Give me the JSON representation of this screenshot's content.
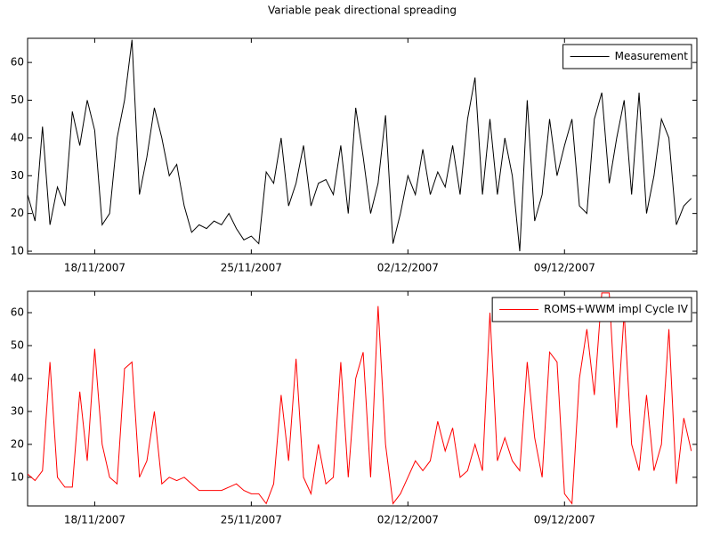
{
  "chart_data": [
    {
      "type": "line",
      "title": "Variable peak directional spreading",
      "x": [
        "2007-11-15T00",
        "2007-11-15T08",
        "2007-11-15T16",
        "2007-11-16T00",
        "2007-11-16T08",
        "2007-11-16T16",
        "2007-11-17T00",
        "2007-11-17T08",
        "2007-11-17T16",
        "2007-11-18T00",
        "2007-11-18T08",
        "2007-11-18T16",
        "2007-11-19T00",
        "2007-11-19T08",
        "2007-11-19T16",
        "2007-11-20T00",
        "2007-11-20T08",
        "2007-11-20T16",
        "2007-11-21T00",
        "2007-11-21T08",
        "2007-11-21T16",
        "2007-11-22T00",
        "2007-11-22T08",
        "2007-11-22T16",
        "2007-11-23T00",
        "2007-11-23T08",
        "2007-11-23T16",
        "2007-11-24T00",
        "2007-11-24T08",
        "2007-11-24T16",
        "2007-11-25T00",
        "2007-11-25T08",
        "2007-11-25T16",
        "2007-11-26T00",
        "2007-11-26T08",
        "2007-11-26T16",
        "2007-11-27T00",
        "2007-11-27T08",
        "2007-11-27T16",
        "2007-11-28T00",
        "2007-11-28T08",
        "2007-11-28T16",
        "2007-11-29T00",
        "2007-11-29T08",
        "2007-11-29T16",
        "2007-11-30T00",
        "2007-11-30T08",
        "2007-11-30T16",
        "2007-12-01T00",
        "2007-12-01T08",
        "2007-12-01T16",
        "2007-12-02T00",
        "2007-12-02T08",
        "2007-12-02T16",
        "2007-12-03T00",
        "2007-12-03T08",
        "2007-12-03T16",
        "2007-12-04T00",
        "2007-12-04T08",
        "2007-12-04T16",
        "2007-12-05T00",
        "2007-12-05T08",
        "2007-12-05T16",
        "2007-12-06T00",
        "2007-12-06T08",
        "2007-12-06T16",
        "2007-12-07T00",
        "2007-12-07T08",
        "2007-12-07T16",
        "2007-12-08T00",
        "2007-12-08T08",
        "2007-12-08T16",
        "2007-12-09T00",
        "2007-12-09T08",
        "2007-12-09T16",
        "2007-12-10T00",
        "2007-12-10T08",
        "2007-12-10T16",
        "2007-12-11T00",
        "2007-12-11T08",
        "2007-12-11T16",
        "2007-12-12T00",
        "2007-12-12T08",
        "2007-12-12T16",
        "2007-12-13T00",
        "2007-12-13T08",
        "2007-12-13T16",
        "2007-12-14T00",
        "2007-12-14T08",
        "2007-12-14T16"
      ],
      "series": [
        {
          "name": "Measurement",
          "color": "#000000",
          "values": [
            25,
            18,
            43,
            17,
            27,
            22,
            47,
            38,
            50,
            42,
            17,
            20,
            40,
            50,
            66,
            25,
            35,
            48,
            40,
            30,
            33,
            22,
            15,
            17,
            16,
            18,
            17,
            20,
            16,
            13,
            14,
            12,
            31,
            28,
            40,
            22,
            28,
            38,
            22,
            28,
            29,
            25,
            38,
            20,
            48,
            35,
            20,
            28,
            46,
            12,
            20,
            30,
            25,
            37,
            25,
            31,
            27,
            38,
            25,
            45,
            56,
            25,
            45,
            25,
            40,
            30,
            10,
            50,
            18,
            25,
            45,
            30,
            38,
            45,
            22,
            20,
            45,
            52,
            28,
            40,
            50,
            25,
            52,
            20,
            30,
            45,
            40,
            17,
            22,
            24
          ]
        }
      ],
      "xlim": [
        "2007-11-15T00",
        "2007-12-14T22"
      ],
      "xticks": [
        {
          "value": "2007-11-18T00",
          "label": "18/11/2007"
        },
        {
          "value": "2007-11-25T00",
          "label": "25/11/2007"
        },
        {
          "value": "2007-12-02T00",
          "label": "02/12/2007"
        },
        {
          "value": "2007-12-09T00",
          "label": "09/12/2007"
        }
      ],
      "ylim": [
        9.3,
        66.4
      ],
      "yticks": [
        10,
        20,
        30,
        40,
        50,
        60
      ],
      "legend": "upper right"
    },
    {
      "type": "line",
      "x": [
        "2007-11-15T00",
        "2007-11-15T08",
        "2007-11-15T16",
        "2007-11-16T00",
        "2007-11-16T08",
        "2007-11-16T16",
        "2007-11-17T00",
        "2007-11-17T08",
        "2007-11-17T16",
        "2007-11-18T00",
        "2007-11-18T08",
        "2007-11-18T16",
        "2007-11-19T00",
        "2007-11-19T08",
        "2007-11-19T16",
        "2007-11-20T00",
        "2007-11-20T08",
        "2007-11-20T16",
        "2007-11-21T00",
        "2007-11-21T08",
        "2007-11-21T16",
        "2007-11-22T00",
        "2007-11-22T08",
        "2007-11-22T16",
        "2007-11-23T00",
        "2007-11-23T08",
        "2007-11-23T16",
        "2007-11-24T00",
        "2007-11-24T08",
        "2007-11-24T16",
        "2007-11-25T00",
        "2007-11-25T08",
        "2007-11-25T16",
        "2007-11-26T00",
        "2007-11-26T08",
        "2007-11-26T16",
        "2007-11-27T00",
        "2007-11-27T08",
        "2007-11-27T16",
        "2007-11-28T00",
        "2007-11-28T08",
        "2007-11-28T16",
        "2007-11-29T00",
        "2007-11-29T08",
        "2007-11-29T16",
        "2007-11-30T00",
        "2007-11-30T08",
        "2007-11-30T16",
        "2007-12-01T00",
        "2007-12-01T08",
        "2007-12-01T16",
        "2007-12-02T00",
        "2007-12-02T08",
        "2007-12-02T16",
        "2007-12-03T00",
        "2007-12-03T08",
        "2007-12-03T16",
        "2007-12-04T00",
        "2007-12-04T08",
        "2007-12-04T16",
        "2007-12-05T00",
        "2007-12-05T08",
        "2007-12-05T16",
        "2007-12-06T00",
        "2007-12-06T08",
        "2007-12-06T16",
        "2007-12-07T00",
        "2007-12-07T08",
        "2007-12-07T16",
        "2007-12-08T00",
        "2007-12-08T08",
        "2007-12-08T16",
        "2007-12-09T00",
        "2007-12-09T08",
        "2007-12-09T16",
        "2007-12-10T00",
        "2007-12-10T08",
        "2007-12-10T16",
        "2007-12-11T00",
        "2007-12-11T08",
        "2007-12-11T16",
        "2007-12-12T00",
        "2007-12-12T08",
        "2007-12-12T16",
        "2007-12-13T00",
        "2007-12-13T08",
        "2007-12-13T16",
        "2007-12-14T00",
        "2007-12-14T08",
        "2007-12-14T16"
      ],
      "series": [
        {
          "name": "ROMS+WWM impl Cycle IV",
          "color": "#ff0000",
          "values": [
            11,
            9,
            12,
            45,
            10,
            7,
            7,
            36,
            15,
            49,
            20,
            10,
            8,
            43,
            45,
            10,
            15,
            30,
            8,
            10,
            9,
            10,
            8,
            6,
            6,
            6,
            6,
            7,
            8,
            6,
            5,
            5,
            2,
            8,
            35,
            15,
            46,
            10,
            5,
            20,
            8,
            10,
            45,
            10,
            40,
            48,
            10,
            62,
            20,
            2,
            5,
            10,
            15,
            12,
            15,
            27,
            18,
            25,
            10,
            12,
            20,
            12,
            60,
            15,
            22,
            15,
            12,
            45,
            22,
            10,
            48,
            45,
            5,
            2,
            40,
            55,
            35,
            66,
            66,
            25,
            60,
            20,
            12,
            35,
            12,
            20,
            55,
            8,
            28,
            18
          ]
        }
      ],
      "xlim": [
        "2007-11-15T00",
        "2007-12-14T22"
      ],
      "xticks": [
        {
          "value": "2007-11-18T00",
          "label": "18/11/2007"
        },
        {
          "value": "2007-11-25T00",
          "label": "25/11/2007"
        },
        {
          "value": "2007-12-02T00",
          "label": "02/12/2007"
        },
        {
          "value": "2007-12-09T00",
          "label": "09/12/2007"
        }
      ],
      "ylim": [
        1.3,
        66.5
      ],
      "yticks": [
        10,
        20,
        30,
        40,
        50,
        60
      ],
      "legend": "upper right"
    }
  ]
}
